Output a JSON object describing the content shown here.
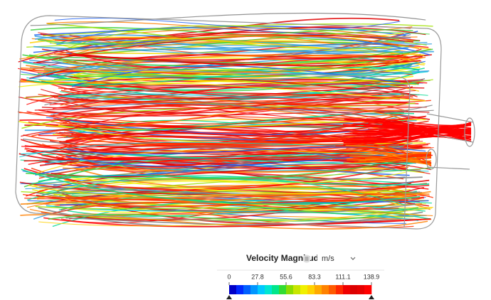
{
  "legend": {
    "title": "Velocity Magnitude",
    "unit": "m/s",
    "ticks": [
      0,
      27.8,
      55.6,
      83.3,
      111.1,
      138.9
    ]
  }
}
